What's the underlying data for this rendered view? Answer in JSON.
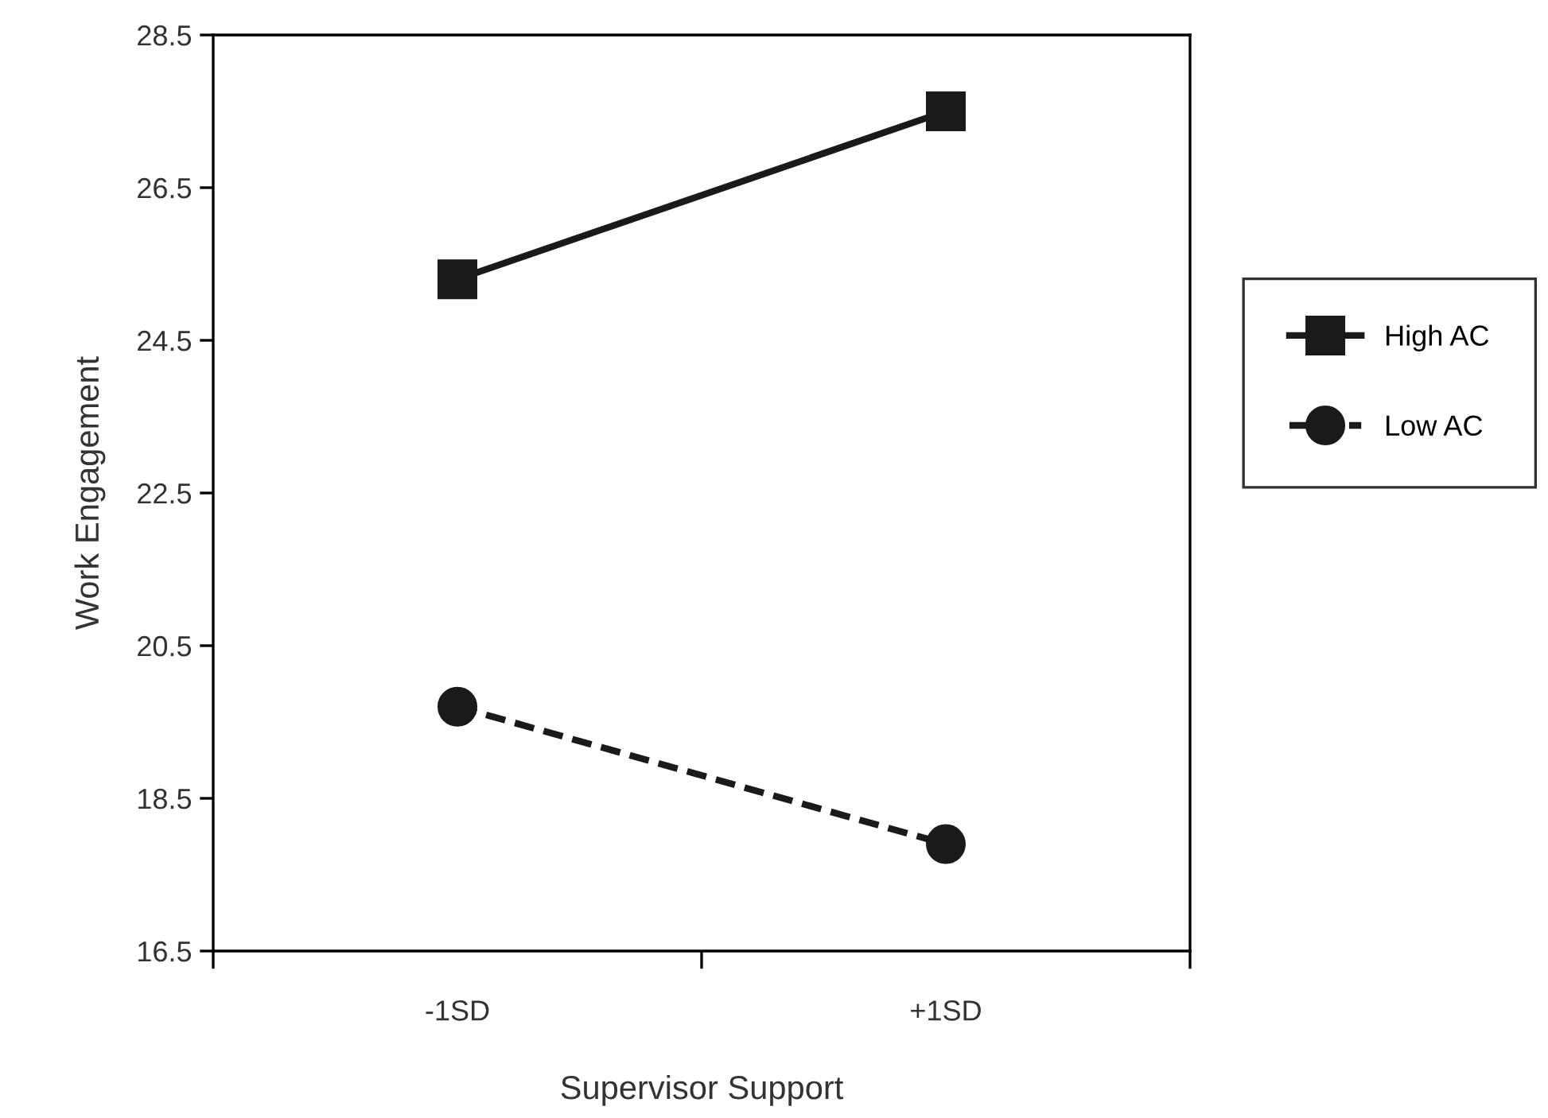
{
  "chart_data": {
    "type": "line",
    "xlabel": "Supervisor Support",
    "ylabel": "Work Engagement",
    "categories": [
      "-1SD",
      "+1SD"
    ],
    "series": [
      {
        "name": "High AC",
        "color": "#1a1a1a",
        "values": [
          25.3,
          27.5
        ],
        "marker": "square",
        "line_style": "solid"
      },
      {
        "name": "Low AC",
        "color": "#1a1a1a",
        "values": [
          19.7,
          17.9
        ],
        "marker": "circle",
        "line_style": "dashed"
      }
    ],
    "ylim": [
      16.5,
      28.5
    ],
    "yticks": [
      16.5,
      18.5,
      20.5,
      22.5,
      24.5,
      26.5,
      28.5
    ],
    "grid": false,
    "legend": "right"
  }
}
